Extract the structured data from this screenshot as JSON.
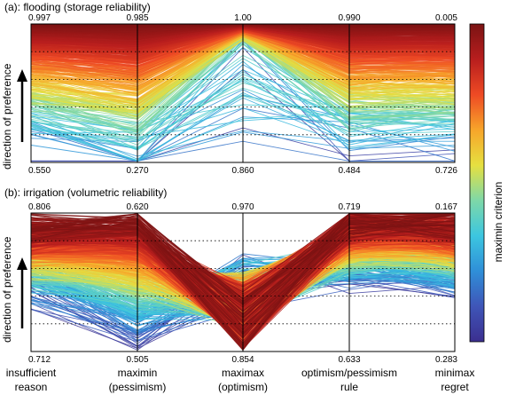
{
  "chart_data": [
    {
      "type": "line",
      "subtype": "parallel-coordinates",
      "title": "(a): flooding (storage reliability)",
      "ylabel": "direction of preference",
      "axes": [
        "insufficient reason",
        "maximin (pessimism)",
        "maximax (optimism)",
        "optimism/pessimism rule",
        "minimax regret"
      ],
      "axis_top_values": [
        "0.997",
        "0.985",
        "1.00",
        "0.990",
        "0.005"
      ],
      "axis_bottom_values": [
        "0.550",
        "0.270",
        "0.860",
        "0.484",
        "0.726"
      ],
      "color_by": "maximin criterion",
      "grid": "dotted",
      "lines_normalized_description_free": true,
      "sample_lines": [
        [
          0.99,
          0.98,
          1.0,
          0.99,
          0.99
        ],
        [
          0.97,
          0.93,
          1.0,
          0.96,
          0.97
        ],
        [
          0.93,
          0.85,
          0.99,
          0.92,
          0.93
        ],
        [
          0.88,
          0.75,
          0.98,
          0.86,
          0.88
        ],
        [
          0.8,
          0.62,
          0.96,
          0.78,
          0.8
        ],
        [
          0.7,
          0.5,
          0.93,
          0.66,
          0.72
        ],
        [
          0.58,
          0.4,
          0.88,
          0.55,
          0.6
        ],
        [
          0.4,
          0.3,
          0.82,
          0.4,
          0.45
        ],
        [
          0.22,
          0.18,
          0.45,
          0.25,
          0.28
        ],
        [
          0.1,
          0.05,
          0.15,
          0.08,
          0.06
        ]
      ]
    },
    {
      "type": "line",
      "subtype": "parallel-coordinates",
      "title": "(b): irrigation (volumetric reliability)",
      "ylabel": "direction of preference",
      "axes": [
        "insufficient reason",
        "maximin (pessimism)",
        "maximax (optimism)",
        "optimism/pessimism rule",
        "minimax regret"
      ],
      "axis_top_values": [
        "0.806",
        "0.620",
        "0.970",
        "0.719",
        "0.167"
      ],
      "axis_bottom_values": [
        "0.712",
        "0.505",
        "0.854",
        "0.633",
        "0.283"
      ],
      "color_by": "maximin criterion",
      "grid": "dotted"
    }
  ],
  "axis_labels": [
    {
      "line1": "insufficient",
      "line2": "reason"
    },
    {
      "line1": "maximin",
      "line2": "(pessimism)"
    },
    {
      "line1": "maximax",
      "line2": "(optimism)"
    },
    {
      "line1": "optimism/pessimism",
      "line2": "rule"
    },
    {
      "line1": "minimax",
      "line2": "regret"
    }
  ],
  "colorbar": {
    "label": "maximin criterion",
    "colors": [
      "#3b2f8f",
      "#3f55b8",
      "#2f8fd8",
      "#3cc6e0",
      "#7ed8a8",
      "#e6e040",
      "#f7a52a",
      "#ee4a24",
      "#b81e1e",
      "#7a1313"
    ]
  }
}
